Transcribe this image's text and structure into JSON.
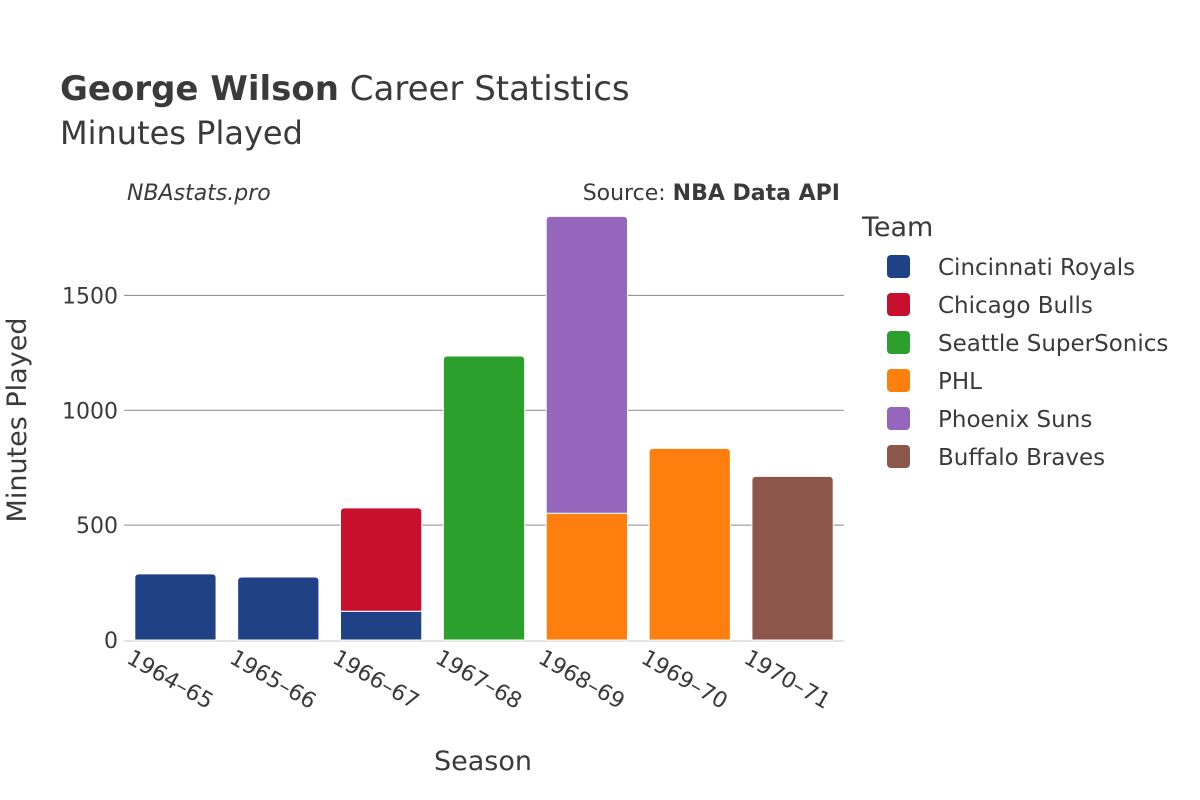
{
  "chart_data": {
    "type": "bar",
    "stacked": true,
    "title_bold": "George Wilson",
    "title_rest": " Career Statistics",
    "subtitle": "Minutes Played",
    "watermark": "NBAstats.pro",
    "source_prefix": "Source: ",
    "source_name": "NBA Data API",
    "xlabel": "Season",
    "ylabel": "Minutes Played",
    "ylim": [
      0,
      1850
    ],
    "yticks": [
      0,
      500,
      1000,
      1500
    ],
    "ytick_labels": [
      "0",
      "500",
      "1000",
      "1500"
    ],
    "legend_title": "Team",
    "legend_position": "right",
    "categories": [
      "1964–65",
      "1965–66",
      "1966–67",
      "1967–68",
      "1968–69",
      "1969–70",
      "1970–71"
    ],
    "series": [
      {
        "name": "Cincinnati Royals",
        "color": "#1f4287",
        "values": [
          288,
          274,
          125,
          0,
          0,
          0,
          0
        ]
      },
      {
        "name": "Chicago Bulls",
        "color": "#c8102e",
        "values": [
          0,
          0,
          450,
          0,
          0,
          0,
          0
        ]
      },
      {
        "name": "Seattle SuperSonics",
        "color": "#2ca02c",
        "values": [
          0,
          0,
          0,
          1236,
          0,
          0,
          0
        ]
      },
      {
        "name": "PHL",
        "color": "#ff7f0e",
        "values": [
          0,
          0,
          0,
          0,
          552,
          834,
          0
        ]
      },
      {
        "name": "Phoenix Suns",
        "color": "#9467bd",
        "values": [
          0,
          0,
          0,
          0,
          1292,
          0,
          0
        ]
      },
      {
        "name": "Buffalo Braves",
        "color": "#8c564b",
        "values": [
          0,
          0,
          0,
          0,
          0,
          0,
          712
        ]
      }
    ]
  }
}
